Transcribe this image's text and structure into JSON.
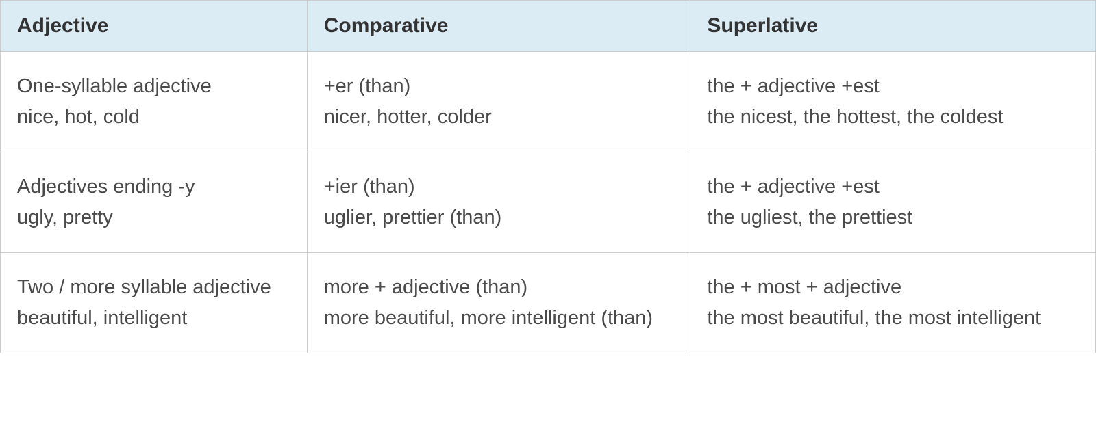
{
  "table": {
    "columns": [
      {
        "label": "Adjective",
        "width_pct": 28
      },
      {
        "label": "Comparative",
        "width_pct": 35
      },
      {
        "label": "Superlative",
        "width_pct": 37
      }
    ],
    "rows": [
      {
        "adjective": "One-syllable adjective\nnice, hot, cold",
        "comparative": "+er (than)\nnicer, hotter, colder",
        "superlative": "the + adjective +est\nthe nicest, the hottest, the coldest"
      },
      {
        "adjective": "Adjectives ending -y\nugly, pretty",
        "comparative": "+ier (than)\nuglier, prettier (than)",
        "superlative": "the + adjective +est\nthe ugliest, the prettiest"
      },
      {
        "adjective": "Two / more syllable adjective\nbeautiful, intelligent",
        "comparative": "more + adjective (than)\nmore beautiful, more intelligent (than)",
        "superlative": "the + most + adjective\nthe most beautiful, the most intelligent"
      }
    ],
    "header_bg_color": "#dcecf5",
    "header_text_color": "#333333",
    "header_fontsize": 30,
    "header_fontweight": 700,
    "cell_bg_color": "#ffffff",
    "cell_text_color": "#4a4a4a",
    "cell_fontsize": 29,
    "border_color": "#cccccc",
    "line_height": 1.55
  }
}
